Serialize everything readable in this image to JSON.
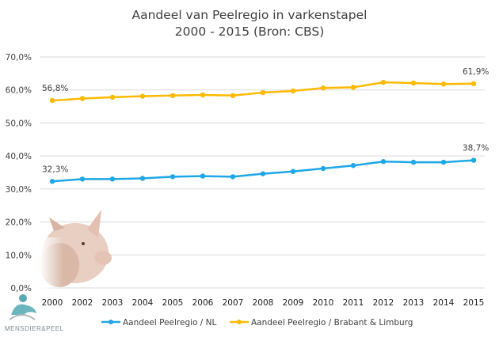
{
  "chart_data": {
    "type": "line",
    "title": "Aandeel van Peelregio in varkenstapel",
    "subtitle": "2000 - 2015 (Bron: CBS)",
    "categories": [
      "2000",
      "2002",
      "2003",
      "2004",
      "2005",
      "2006",
      "2007",
      "2008",
      "2009",
      "2010",
      "2011",
      "2012",
      "2013",
      "2014",
      "2015"
    ],
    "ylim": [
      0,
      70
    ],
    "yticks": [
      "0,0%",
      "10,0%",
      "20,0%",
      "30,0%",
      "40,0%",
      "50,0%",
      "60,0%",
      "70,0%"
    ],
    "grid": true,
    "legend": "bottom",
    "series": [
      {
        "name": "Aandeel Peelregio / NL",
        "color": "#1ea7e6",
        "values": [
          32.3,
          33.0,
          33.0,
          33.2,
          33.7,
          33.9,
          33.7,
          34.6,
          35.3,
          36.2,
          37.1,
          38.3,
          38.1,
          38.1,
          38.7
        ],
        "labels": {
          "first": "32,3%",
          "last": "38,7%"
        }
      },
      {
        "name": "Aandeel Peelregio / Brabant & Limburg",
        "color": "#ffb900",
        "values": [
          56.8,
          57.4,
          57.8,
          58.1,
          58.3,
          58.5,
          58.3,
          59.2,
          59.7,
          60.6,
          60.8,
          62.3,
          62.1,
          61.8,
          61.9
        ],
        "labels": {
          "first": "56,8%",
          "last": "61,9%"
        }
      }
    ]
  },
  "logo": {
    "text": "MENSDIER&PEEL"
  },
  "images": {
    "pig": "pig-photo"
  }
}
